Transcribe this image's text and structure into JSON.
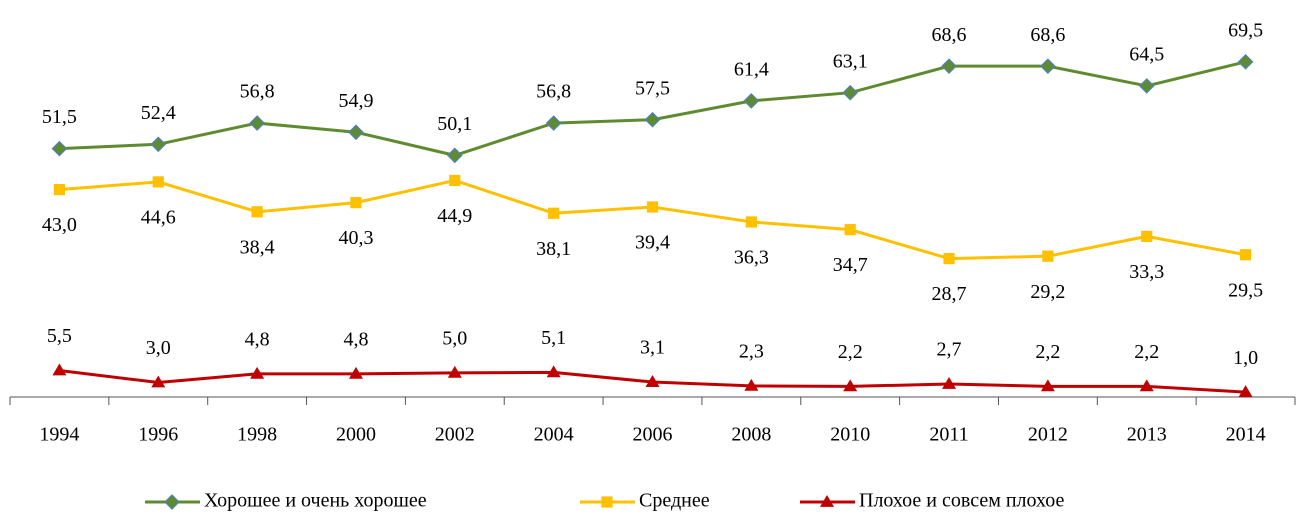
{
  "chart_data": {
    "type": "line",
    "categories": [
      "1994",
      "1996",
      "1998",
      "2000",
      "2002",
      "2004",
      "2006",
      "2008",
      "2010",
      "2011",
      "2012",
      "2013",
      "2014"
    ],
    "ylim": [
      0,
      70.5
    ],
    "series": [
      {
        "name": "Хорошее и очень хорошее",
        "color": "#5f8b30",
        "marker": "diamond",
        "values": [
          51.5,
          52.4,
          56.8,
          54.9,
          50.1,
          56.8,
          57.5,
          61.4,
          63.1,
          68.6,
          68.6,
          64.5,
          69.5
        ],
        "value_labels": [
          "51,5",
          "52,4",
          "56,8",
          "54,9",
          "50,1",
          "56,8",
          "57,5",
          "61,4",
          "63,1",
          "68,6",
          "68,6",
          "64,5",
          "69,5"
        ]
      },
      {
        "name": "Среднее",
        "color": "#ffc000",
        "marker": "square",
        "values": [
          43.0,
          44.6,
          38.4,
          40.3,
          44.9,
          38.1,
          39.4,
          36.3,
          34.7,
          28.7,
          29.2,
          33.3,
          29.5
        ],
        "value_labels": [
          "43,0",
          "44,6",
          "38,4",
          "40,3",
          "44,9",
          "38,1",
          "39,4",
          "36,3",
          "34,7",
          "28,7",
          "29,2",
          "33,3",
          "29,5"
        ]
      },
      {
        "name": "Плохое и совсем плохое",
        "color": "#c00000",
        "marker": "triangle",
        "values": [
          5.5,
          3.0,
          4.8,
          4.8,
          5.0,
          5.1,
          3.1,
          2.3,
          2.2,
          2.7,
          2.2,
          2.2,
          1.0
        ],
        "value_labels": [
          "5,5",
          "3,0",
          "4,8",
          "4,8",
          "5,0",
          "5,1",
          "3,1",
          "2,3",
          "2,2",
          "2,7",
          "2,2",
          "2,2",
          "1,0"
        ]
      }
    ],
    "legend": "bottom"
  }
}
